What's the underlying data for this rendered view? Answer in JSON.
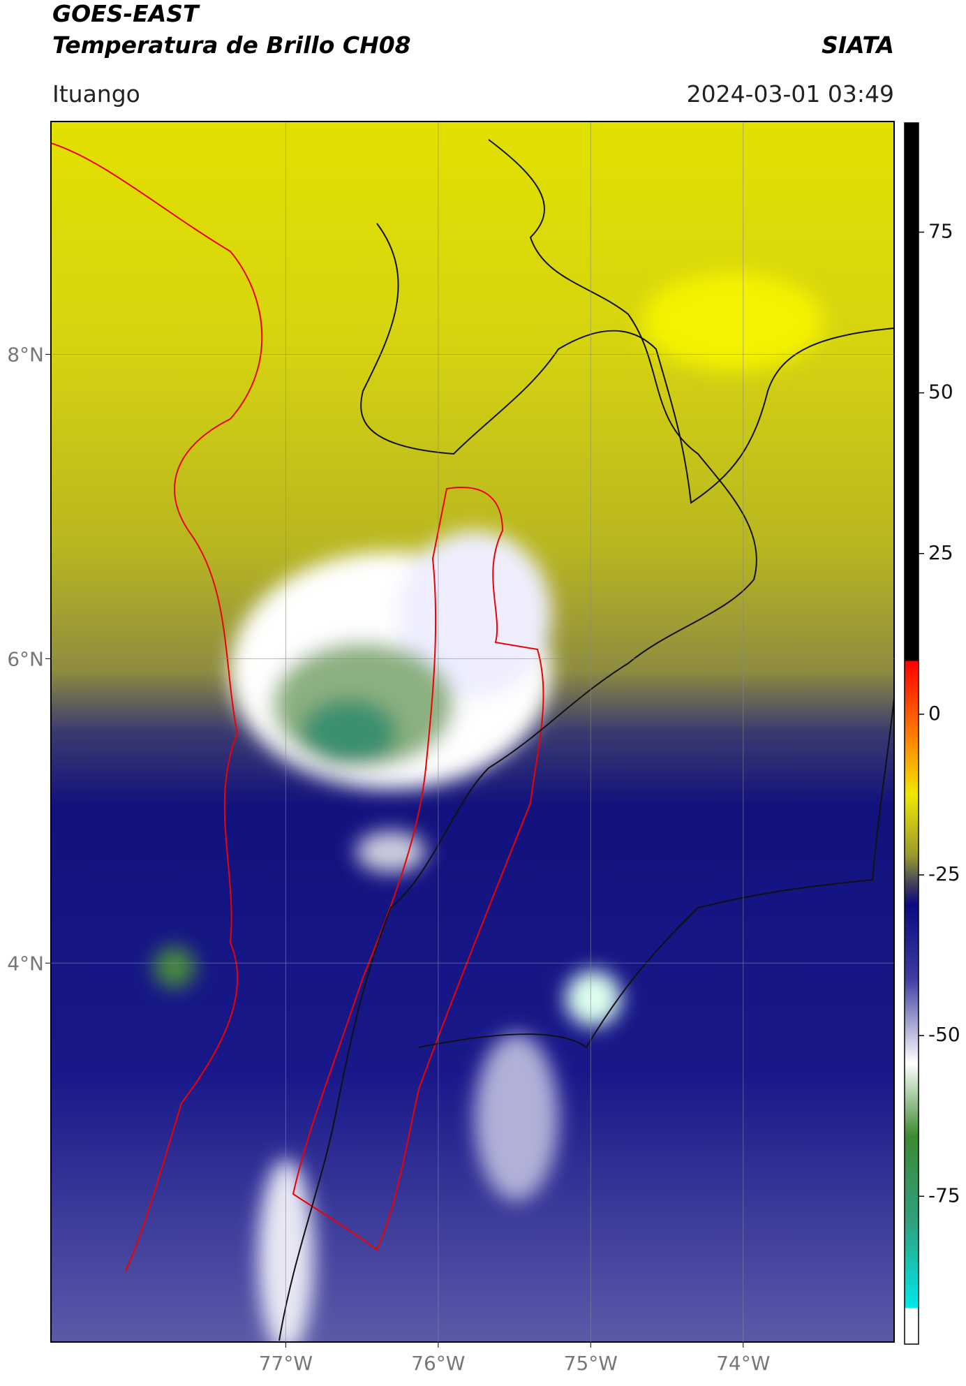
{
  "header": {
    "title": "GOES-EAST",
    "subtitle": "Temperatura de Brillo CH08",
    "source": "SIATA",
    "location": "Ituango",
    "datetime": "2024-03-01 03:49"
  },
  "map": {
    "xlim": [
      -78.54,
      -73.01
    ],
    "ylim": [
      1.51,
      9.53
    ],
    "xticks": [
      {
        "value": -77,
        "label": "77°W"
      },
      {
        "value": -76,
        "label": "76°W"
      },
      {
        "value": -75,
        "label": "75°W"
      },
      {
        "value": -74,
        "label": "74°W"
      }
    ],
    "yticks": [
      {
        "value": 8,
        "label": "8°N"
      },
      {
        "value": 6,
        "label": "6°N"
      },
      {
        "value": 4,
        "label": "4°N"
      }
    ]
  },
  "colorbar": {
    "lim": [
      -98,
      92
    ],
    "ticks": [
      75,
      50,
      25,
      0,
      -25,
      -50,
      -75
    ]
  }
}
